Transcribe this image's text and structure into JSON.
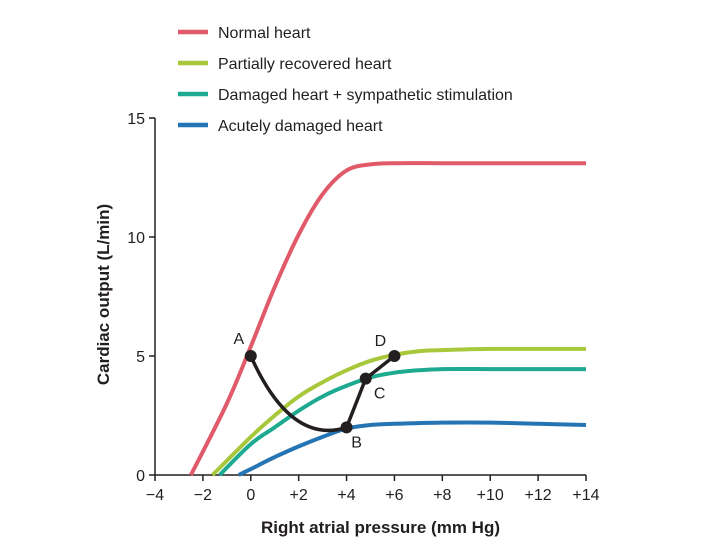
{
  "chart_data": {
    "type": "line",
    "title": "",
    "xlabel": "Right atrial pressure (mm Hg)",
    "ylabel": "Cardiac output (L/min)",
    "xlim": [
      -4,
      14
    ],
    "ylim": [
      0,
      15
    ],
    "xticks": [
      -4,
      -2,
      0,
      2,
      4,
      6,
      8,
      10,
      12,
      14
    ],
    "xtick_labels": [
      "−4",
      "−2",
      "0",
      "+2",
      "+4",
      "+6",
      "+8",
      "+10",
      "+12",
      "+14"
    ],
    "yticks": [
      0,
      5,
      10,
      15
    ],
    "ytick_labels": [
      "0",
      "5",
      "10",
      "15"
    ],
    "legend_position": "top",
    "series": [
      {
        "name": "Normal heart",
        "color": "#e05a6a",
        "x": [
          -2.5,
          -1,
          0,
          1,
          2,
          3,
          4,
          5,
          6,
          8,
          10,
          12,
          14
        ],
        "y": [
          0,
          3,
          5.4,
          7.9,
          10.1,
          11.8,
          12.8,
          13.05,
          13.1,
          13.1,
          13.1,
          13.1,
          13.1
        ]
      },
      {
        "name": "Partially recovered heart",
        "color": "#a8c83c",
        "x": [
          -1.6,
          0,
          1,
          2,
          3,
          4,
          5,
          6,
          7,
          8,
          10,
          12,
          14
        ],
        "y": [
          0,
          1.6,
          2.5,
          3.3,
          3.9,
          4.4,
          4.8,
          5.05,
          5.2,
          5.25,
          5.3,
          5.3,
          5.3
        ]
      },
      {
        "name": "Damaged heart + sympathetic stimulation",
        "color": "#1eaa90",
        "x": [
          -1.3,
          0,
          1,
          2,
          3,
          4,
          5,
          6,
          7,
          8,
          10,
          12,
          14
        ],
        "y": [
          0,
          1.3,
          2.0,
          2.7,
          3.3,
          3.75,
          4.1,
          4.3,
          4.4,
          4.45,
          4.45,
          4.45,
          4.45
        ]
      },
      {
        "name": "Acutely damaged heart",
        "color": "#2575b5",
        "x": [
          -0.5,
          0,
          1,
          2,
          3,
          4,
          5,
          6,
          8,
          10,
          12,
          14
        ],
        "y": [
          0,
          0.25,
          0.75,
          1.2,
          1.6,
          1.95,
          2.1,
          2.15,
          2.2,
          2.2,
          2.15,
          2.1
        ]
      }
    ],
    "transition_path": {
      "color": "#231f20",
      "points": [
        {
          "label": "A",
          "x": 0,
          "y": 5
        },
        {
          "label": "B",
          "x": 4,
          "y": 2
        },
        {
          "label": "C",
          "x": 4.8,
          "y": 4.05
        },
        {
          "label": "D",
          "x": 6,
          "y": 5
        }
      ]
    }
  }
}
